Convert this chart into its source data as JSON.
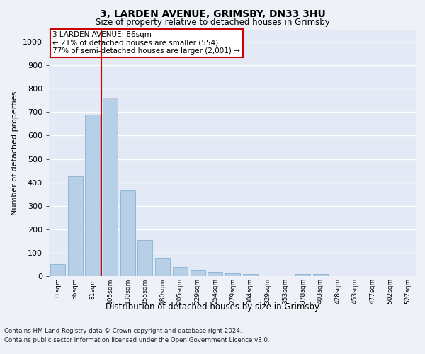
{
  "title1": "3, LARDEN AVENUE, GRIMSBY, DN33 3HU",
  "title2": "Size of property relative to detached houses in Grimsby",
  "xlabel": "Distribution of detached houses by size in Grimsby",
  "ylabel": "Number of detached properties",
  "categories": [
    "31sqm",
    "56sqm",
    "81sqm",
    "105sqm",
    "130sqm",
    "155sqm",
    "180sqm",
    "205sqm",
    "229sqm",
    "254sqm",
    "279sqm",
    "304sqm",
    "329sqm",
    "353sqm",
    "378sqm",
    "403sqm",
    "428sqm",
    "453sqm",
    "477sqm",
    "502sqm",
    "527sqm"
  ],
  "values": [
    51,
    425,
    690,
    760,
    365,
    155,
    75,
    38,
    25,
    18,
    13,
    8,
    0,
    0,
    10,
    8,
    0,
    0,
    0,
    0,
    0
  ],
  "bar_color": "#b8cfe8",
  "bar_edge_color": "#7aaad0",
  "red_line_x": 2.5,
  "red_line_color": "#cc0000",
  "annotation_text": "3 LARDEN AVENUE: 86sqm\n← 21% of detached houses are smaller (554)\n77% of semi-detached houses are larger (2,001) →",
  "annotation_box_color": "#cc0000",
  "ylim": [
    0,
    1050
  ],
  "yticks": [
    0,
    100,
    200,
    300,
    400,
    500,
    600,
    700,
    800,
    900,
    1000
  ],
  "bg_color": "#eef1f8",
  "plot_bg_color": "#e4eaf5",
  "grid_color": "#ffffff",
  "footer1": "Contains HM Land Registry data © Crown copyright and database right 2024.",
  "footer2": "Contains public sector information licensed under the Open Government Licence v3.0."
}
